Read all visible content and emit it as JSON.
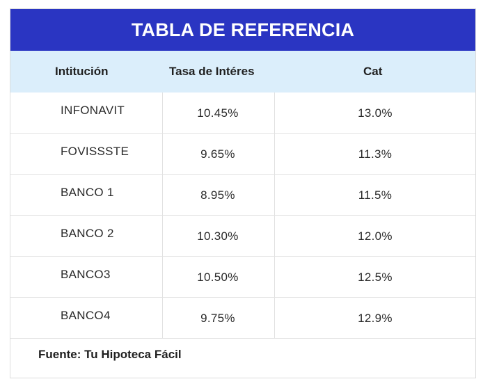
{
  "title": "TABLA DE REFERENCIA",
  "headers": [
    "Intitución",
    "Tasa de Intéres",
    "Cat"
  ],
  "rows": [
    {
      "institucion": "INFONAVIT",
      "tasa": "10.45%",
      "cat": "13.0%"
    },
    {
      "institucion": "FOVISSSTE",
      "tasa": "9.65%",
      "cat": "11.3%"
    },
    {
      "institucion": "BANCO 1",
      "tasa": "8.95%",
      "cat": "11.5%"
    },
    {
      "institucion": "BANCO 2",
      "tasa": "10.30%",
      "cat": "12.0%"
    },
    {
      "institucion": "BANCO3",
      "tasa": "10.50%",
      "cat": "12.5%"
    },
    {
      "institucion": "BANCO4",
      "tasa": "9.75%",
      "cat": "12.9%"
    }
  ],
  "source": "Fuente: Tu Hipoteca Fácil",
  "colors": {
    "title_bg": "#2a35c2",
    "header_bg": "#dbeefb",
    "border": "#e2e2e2"
  }
}
